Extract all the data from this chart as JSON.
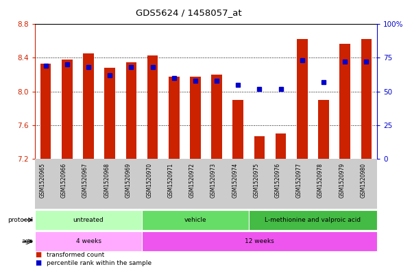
{
  "title": "GDS5624 / 1458057_at",
  "samples": [
    "GSM1520965",
    "GSM1520966",
    "GSM1520967",
    "GSM1520968",
    "GSM1520969",
    "GSM1520970",
    "GSM1520971",
    "GSM1520972",
    "GSM1520973",
    "GSM1520974",
    "GSM1520975",
    "GSM1520976",
    "GSM1520977",
    "GSM1520978",
    "GSM1520979",
    "GSM1520980"
  ],
  "transformed_count": [
    8.33,
    8.38,
    8.45,
    8.28,
    8.35,
    8.43,
    8.18,
    8.18,
    8.2,
    7.9,
    7.47,
    7.5,
    8.62,
    7.9,
    8.57,
    8.62
  ],
  "percentile_rank": [
    69,
    70,
    68,
    62,
    68,
    68,
    60,
    58,
    58,
    55,
    52,
    52,
    73,
    57,
    72,
    72
  ],
  "ylim_left": [
    7.2,
    8.8
  ],
  "ylim_right": [
    0,
    100
  ],
  "yticks_left": [
    7.2,
    7.6,
    8.0,
    8.4,
    8.8
  ],
  "yticks_right": [
    0,
    25,
    50,
    75,
    100
  ],
  "bar_color": "#cc2200",
  "dot_color": "#0000cc",
  "protocol_groups": [
    {
      "label": "untreated",
      "start": 0,
      "end": 5,
      "color": "#bbffbb"
    },
    {
      "label": "vehicle",
      "start": 5,
      "end": 10,
      "color": "#66dd66"
    },
    {
      "label": "L-methionine and valproic acid",
      "start": 10,
      "end": 16,
      "color": "#44bb44"
    }
  ],
  "age_groups": [
    {
      "label": "4 weeks",
      "start": 0,
      "end": 5,
      "color": "#ffaaff"
    },
    {
      "label": "12 weeks",
      "start": 5,
      "end": 16,
      "color": "#ee55ee"
    }
  ],
  "legend_bar_label": "transformed count",
  "legend_dot_label": "percentile rank within the sample",
  "left_axis_color": "#cc2200",
  "right_axis_color": "#0000cc",
  "background_color": "#ffffff",
  "plot_bg_color": "#ffffff",
  "sample_bg_color": "#cccccc"
}
